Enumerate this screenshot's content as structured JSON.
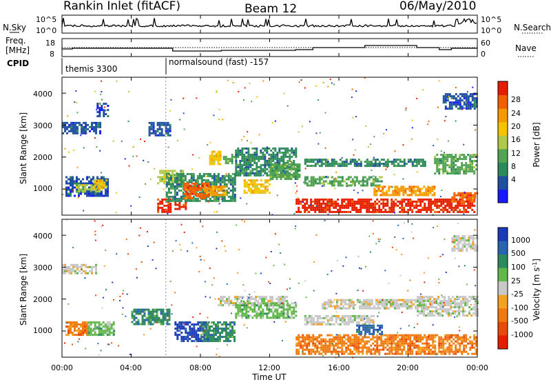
{
  "header": {
    "radar_title": "Rankin Inlet (fitACF)",
    "beam": "Beam 12",
    "date": "06/May/2010"
  },
  "top_panel": {
    "left_label": "N.Sky",
    "left_ticks": [
      "10^5",
      "10^0"
    ],
    "right_label": "N.Search",
    "right_ticks": [
      "10^5",
      "10^0"
    ]
  },
  "freq_panel": {
    "left_label_line1": "Freq.",
    "left_label_line2": "[MHz]",
    "left_ticks": [
      "18",
      "8"
    ],
    "right_label": "Nave",
    "right_ticks": [
      "60",
      "0"
    ]
  },
  "cpid_panel": {
    "label": "CPID",
    "segments": [
      "themis 3300",
      "normalsound (fast) -157"
    ]
  },
  "power_panel": {
    "ylabel": "Slant Range [km]",
    "yticks": [
      "4000",
      "3000",
      "2000",
      "1000"
    ],
    "colorbar_label": "Power [dB]",
    "colorbar_ticks": [
      "28",
      "24",
      "20",
      "16",
      "12",
      "8",
      "4"
    ],
    "colors": [
      "#1919ff",
      "#1f4fa0",
      "#2c8a5a",
      "#52a452",
      "#b0c94a",
      "#f4c400",
      "#f59a00",
      "#f06000",
      "#e61e00"
    ]
  },
  "velocity_panel": {
    "ylabel": "Slant Range [km]",
    "yticks": [
      "4000",
      "3000",
      "2000",
      "1000"
    ],
    "colorbar_label": "Velocity [m s",
    "colorbar_sup": "-1",
    "colorbar_close": "]",
    "colorbar_ticks": [
      "1000",
      "500",
      "100",
      "25",
      "-25",
      "-100",
      "-500",
      "-1000"
    ],
    "colors": [
      "#1a3ab8",
      "#2a64b0",
      "#2e8a5c",
      "#63b84c",
      "#c8c8c8",
      "#f4a020",
      "#f07a10",
      "#e84a0c",
      "#e61e00"
    ]
  },
  "time_axis": {
    "ticks": [
      "00:00",
      "04:00",
      "08:00",
      "12:00",
      "16:00",
      "20:00",
      "00:00"
    ],
    "xlabel": "Time UT"
  },
  "chart_data": {
    "type": "heatmap",
    "x_range_hours": [
      0,
      24
    ],
    "y_range_km": [
      180,
      4500
    ],
    "cpid_switch_hour": 6,
    "power_patches": [
      {
        "t0": 0.0,
        "t1": 2.2,
        "r0": 2750,
        "r1": 3100,
        "level": 1
      },
      {
        "t0": 2.0,
        "t1": 2.7,
        "r0": 3300,
        "r1": 3700,
        "level": 1
      },
      {
        "t0": 0.2,
        "t1": 2.7,
        "r0": 800,
        "r1": 1400,
        "level": 1
      },
      {
        "t0": 0.8,
        "t1": 2.2,
        "r0": 900,
        "r1": 1150,
        "level": 4
      },
      {
        "t0": 1.8,
        "t1": 2.6,
        "r0": 1000,
        "r1": 1300,
        "level": 5
      },
      {
        "t0": 5.0,
        "t1": 6.3,
        "r0": 2700,
        "r1": 3100,
        "level": 1
      },
      {
        "t0": 5.5,
        "t1": 7.0,
        "r0": 1200,
        "r1": 1600,
        "level": 4
      },
      {
        "t0": 5.5,
        "t1": 6.3,
        "r0": 300,
        "r1": 700,
        "level": 8
      },
      {
        "t0": 6.5,
        "t1": 7.2,
        "r0": 400,
        "r1": 600,
        "level": 8
      },
      {
        "t0": 6.0,
        "t1": 10.0,
        "r0": 600,
        "r1": 1500,
        "level": 2
      },
      {
        "t0": 7.0,
        "t1": 8.5,
        "r0": 700,
        "r1": 1200,
        "level": 7
      },
      {
        "t0": 8.2,
        "t1": 9.5,
        "r0": 800,
        "r1": 1100,
        "level": 6
      },
      {
        "t0": 8.5,
        "t1": 9.2,
        "r0": 1800,
        "r1": 2200,
        "level": 5
      },
      {
        "t0": 9.3,
        "t1": 10.1,
        "r0": 1800,
        "r1": 2100,
        "level": 3
      },
      {
        "t0": 10.0,
        "t1": 13.5,
        "r0": 1400,
        "r1": 2300,
        "level": 2
      },
      {
        "t0": 10.5,
        "t1": 12.0,
        "r0": 900,
        "r1": 1300,
        "level": 5
      },
      {
        "t0": 12.0,
        "t1": 13.7,
        "r0": 1300,
        "r1": 1800,
        "level": 3
      },
      {
        "t0": 13.5,
        "t1": 23.8,
        "r0": 300,
        "r1": 700,
        "level": 8
      },
      {
        "t0": 14.0,
        "t1": 18.5,
        "r0": 1100,
        "r1": 1400,
        "level": 3
      },
      {
        "t0": 14.0,
        "t1": 21.0,
        "r0": 1700,
        "r1": 1950,
        "level": 2
      },
      {
        "t0": 18.0,
        "t1": 21.5,
        "r0": 800,
        "r1": 1100,
        "level": 6
      },
      {
        "t0": 21.5,
        "t1": 24.0,
        "r0": 1500,
        "r1": 2100,
        "level": 3
      },
      {
        "t0": 22.0,
        "t1": 24.0,
        "r0": 3500,
        "r1": 4000,
        "level": 1
      },
      {
        "t0": 22.5,
        "t1": 24.0,
        "r0": 600,
        "r1": 900,
        "level": 7
      }
    ],
    "velocity_patches": [
      {
        "t0": 0.0,
        "t1": 2.0,
        "r0": 2800,
        "r1": 3100,
        "level": 4
      },
      {
        "t0": 0.2,
        "t1": 1.5,
        "r0": 900,
        "r1": 1300,
        "level": 6
      },
      {
        "t0": 1.5,
        "t1": 3.0,
        "r0": 900,
        "r1": 1300,
        "level": 3
      },
      {
        "t0": 4.0,
        "t1": 6.2,
        "r0": 1200,
        "r1": 1700,
        "level": 2
      },
      {
        "t0": 6.5,
        "t1": 8.5,
        "r0": 700,
        "r1": 1300,
        "level": 0
      },
      {
        "t0": 8.0,
        "t1": 10.0,
        "r0": 700,
        "r1": 1300,
        "level": 2
      },
      {
        "t0": 9.0,
        "t1": 13.0,
        "r0": 1800,
        "r1": 2100,
        "level": 4
      },
      {
        "t0": 10.0,
        "t1": 13.5,
        "r0": 1400,
        "r1": 1900,
        "level": 3
      },
      {
        "t0": 13.5,
        "t1": 24.0,
        "r0": 300,
        "r1": 900,
        "level": 6
      },
      {
        "t0": 14.0,
        "t1": 18.0,
        "r0": 1200,
        "r1": 1500,
        "level": 4
      },
      {
        "t0": 15.0,
        "t1": 21.0,
        "r0": 1700,
        "r1": 2000,
        "level": 4
      },
      {
        "t0": 20.5,
        "t1": 24.0,
        "r0": 1500,
        "r1": 2100,
        "level": 4
      },
      {
        "t0": 22.5,
        "t1": 24.0,
        "r0": 3500,
        "r1": 4000,
        "level": 4
      },
      {
        "t0": 17.0,
        "t1": 18.5,
        "r0": 900,
        "r1": 1200,
        "level": 1
      }
    ]
  }
}
